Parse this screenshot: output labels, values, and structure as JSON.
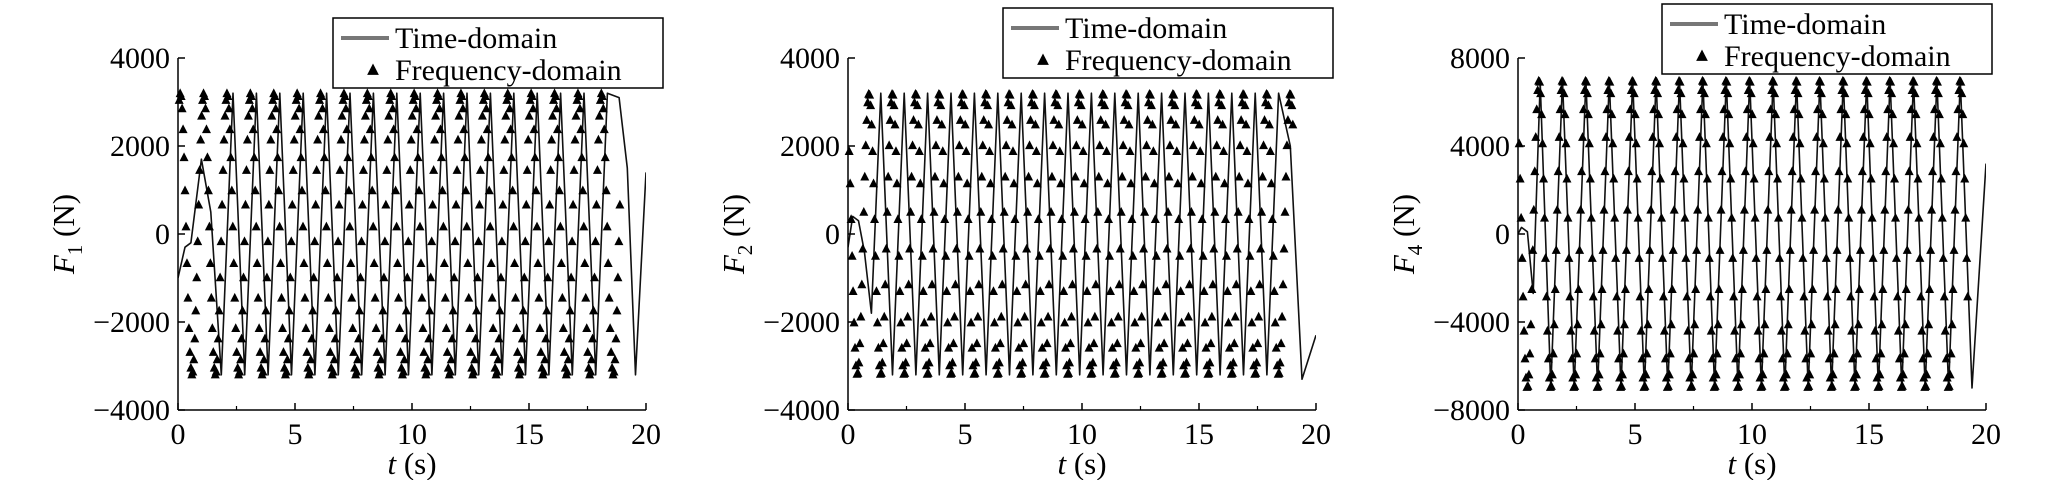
{
  "charts": [
    {
      "ylabel_symbol": "F",
      "ylabel_subscript": "1",
      "ylabel_unit": " (N)",
      "xlabel_symbol": "t",
      "xlabel_unit": " (s)",
      "yticks": [
        "4000",
        "2000",
        "0",
        "−2000",
        "−4000"
      ],
      "xticks": [
        "0",
        "5",
        "10",
        "15",
        "20"
      ],
      "legend": [
        "Time-domain",
        "Frequency-domain"
      ]
    },
    {
      "ylabel_symbol": "F",
      "ylabel_subscript": "2",
      "ylabel_unit": " (N)",
      "xlabel_symbol": "t",
      "xlabel_unit": " (s)",
      "yticks": [
        "4000",
        "2000",
        "0",
        "−2000",
        "−4000"
      ],
      "xticks": [
        "0",
        "5",
        "10",
        "15",
        "20"
      ],
      "legend": [
        "Time-domain",
        "Frequency-domain"
      ]
    },
    {
      "ylabel_symbol": "F",
      "ylabel_subscript": "4",
      "ylabel_unit": " (N)",
      "xlabel_symbol": "t",
      "xlabel_unit": " (s)",
      "yticks": [
        "8000",
        "4000",
        "0",
        "−4000",
        "−8000"
      ],
      "xticks": [
        "0",
        "5",
        "10",
        "15",
        "20"
      ],
      "legend": [
        "Time-domain",
        "Frequency-domain"
      ]
    }
  ],
  "chart_data": [
    {
      "type": "line",
      "xlabel": "t (s)",
      "ylabel": "F1 (N)",
      "xlim": [
        0,
        20
      ],
      "ylim": [
        -4000,
        4000
      ],
      "xtick_values": [
        0,
        5,
        10,
        15,
        20
      ],
      "ytick_values": [
        4000,
        2000,
        0,
        -2000,
        -4000
      ],
      "legend_position": "top-right",
      "grid": false,
      "series": [
        {
          "name": "Time-domain",
          "style": "line",
          "x": [
            0,
            0.3,
            0.55,
            1.0,
            1.4,
            1.85,
            2.35,
            2.85,
            3.35,
            3.85,
            4.35,
            4.85,
            5.35,
            5.85,
            6.35,
            6.85,
            7.35,
            7.85,
            8.35,
            8.85,
            9.35,
            9.85,
            10.35,
            10.85,
            11.35,
            11.85,
            12.35,
            12.85,
            13.35,
            13.85,
            14.35,
            14.85,
            15.35,
            15.85,
            16.35,
            16.85,
            17.35,
            17.85,
            18.35,
            18.85,
            19.2,
            19.55,
            20.0
          ],
          "y": [
            -1000,
            -300,
            -200,
            1700,
            500,
            -3200,
            3200,
            -3200,
            3200,
            -3200,
            3200,
            -3200,
            3200,
            -3200,
            3200,
            -3200,
            3200,
            -3200,
            3200,
            -3200,
            3200,
            -3200,
            3200,
            -3200,
            3200,
            -3200,
            3200,
            -3200,
            3200,
            -3200,
            3200,
            -3200,
            3200,
            -3200,
            3200,
            -3200,
            3200,
            -3200,
            3200,
            3100,
            1500,
            -3200,
            1400
          ]
        },
        {
          "name": "Frequency-domain",
          "style": "marker",
          "marker": "triangle",
          "amplitude": 3200,
          "period": 1.0,
          "phase": 1.85,
          "x_start": 0.05,
          "x_end": 18.9,
          "points_per_period": 24
        }
      ]
    },
    {
      "type": "line",
      "xlabel": "t (s)",
      "ylabel": "F2 (N)",
      "xlim": [
        0,
        20
      ],
      "ylim": [
        -4000,
        4000
      ],
      "xtick_values": [
        0,
        5,
        10,
        15,
        20
      ],
      "ytick_values": [
        4000,
        2000,
        0,
        -2000,
        -4000
      ],
      "legend_position": "top-right",
      "grid": false,
      "series": [
        {
          "name": "Time-domain",
          "style": "line",
          "x": [
            0,
            0.2,
            0.45,
            0.7,
            1.0,
            1.4,
            1.9,
            2.4,
            2.9,
            3.4,
            3.9,
            4.4,
            4.9,
            5.4,
            5.9,
            6.4,
            6.9,
            7.4,
            7.9,
            8.4,
            8.9,
            9.4,
            9.9,
            10.4,
            10.9,
            11.4,
            11.9,
            12.4,
            12.9,
            13.4,
            13.9,
            14.4,
            14.9,
            15.4,
            15.9,
            16.4,
            16.9,
            17.4,
            17.9,
            18.4,
            18.9,
            19.4,
            20.0
          ],
          "y": [
            -300,
            400,
            300,
            -400,
            -1800,
            3200,
            -3200,
            3200,
            -3200,
            3200,
            -3200,
            3200,
            -3200,
            3200,
            -3200,
            3200,
            -3200,
            3200,
            -3200,
            3200,
            -3200,
            3200,
            -3200,
            3200,
            -3200,
            3200,
            -3200,
            3200,
            -3200,
            3200,
            -3200,
            3200,
            -3200,
            3200,
            -3200,
            3200,
            -3200,
            3200,
            -3200,
            3200,
            2000,
            -3300,
            -2300
          ]
        },
        {
          "name": "Frequency-domain",
          "style": "marker",
          "marker": "triangle",
          "amplitude": 3200,
          "period": 1.0,
          "phase": 1.65,
          "x_start": 0.05,
          "x_end": 19.0,
          "points_per_period": 24
        }
      ]
    },
    {
      "type": "line",
      "xlabel": "t (s)",
      "ylabel": "F4 (N)",
      "xlim": [
        0,
        20
      ],
      "ylim": [
        -8000,
        8000
      ],
      "xtick_values": [
        0,
        5,
        10,
        15,
        20
      ],
      "ytick_values": [
        8000,
        4000,
        0,
        -4000,
        -8000
      ],
      "legend_position": "top-right",
      "grid": false,
      "series": [
        {
          "name": "Time-domain",
          "style": "line",
          "x": [
            0,
            0.15,
            0.4,
            0.65,
            0.95,
            1.4,
            1.9,
            2.4,
            2.9,
            3.4,
            3.9,
            4.4,
            4.9,
            5.4,
            5.9,
            6.4,
            6.9,
            7.4,
            7.9,
            8.4,
            8.9,
            9.4,
            9.9,
            10.4,
            10.9,
            11.4,
            11.9,
            12.4,
            12.9,
            13.4,
            13.9,
            14.4,
            14.9,
            15.4,
            15.9,
            16.4,
            16.9,
            17.4,
            17.9,
            18.4,
            18.9,
            19.4,
            20.0
          ],
          "y": [
            0,
            300,
            100,
            -2700,
            6900,
            -7000,
            7000,
            -7000,
            7000,
            -7000,
            7000,
            -7000,
            7000,
            -7000,
            7000,
            -7000,
            7000,
            -7000,
            7000,
            -7000,
            7000,
            -7000,
            7000,
            -7000,
            7000,
            -7000,
            7000,
            -7000,
            7000,
            -7000,
            7000,
            -7000,
            7000,
            -7000,
            7000,
            -7000,
            7000,
            -7000,
            7000,
            -7000,
            7000,
            -7000,
            3200
          ]
        },
        {
          "name": "Frequency-domain",
          "style": "marker",
          "marker": "triangle",
          "amplitude": 7000,
          "period": 1.0,
          "phase": 1.65,
          "x_start": 0.05,
          "x_end": 19.2,
          "points_per_period": 24
        }
      ]
    }
  ]
}
